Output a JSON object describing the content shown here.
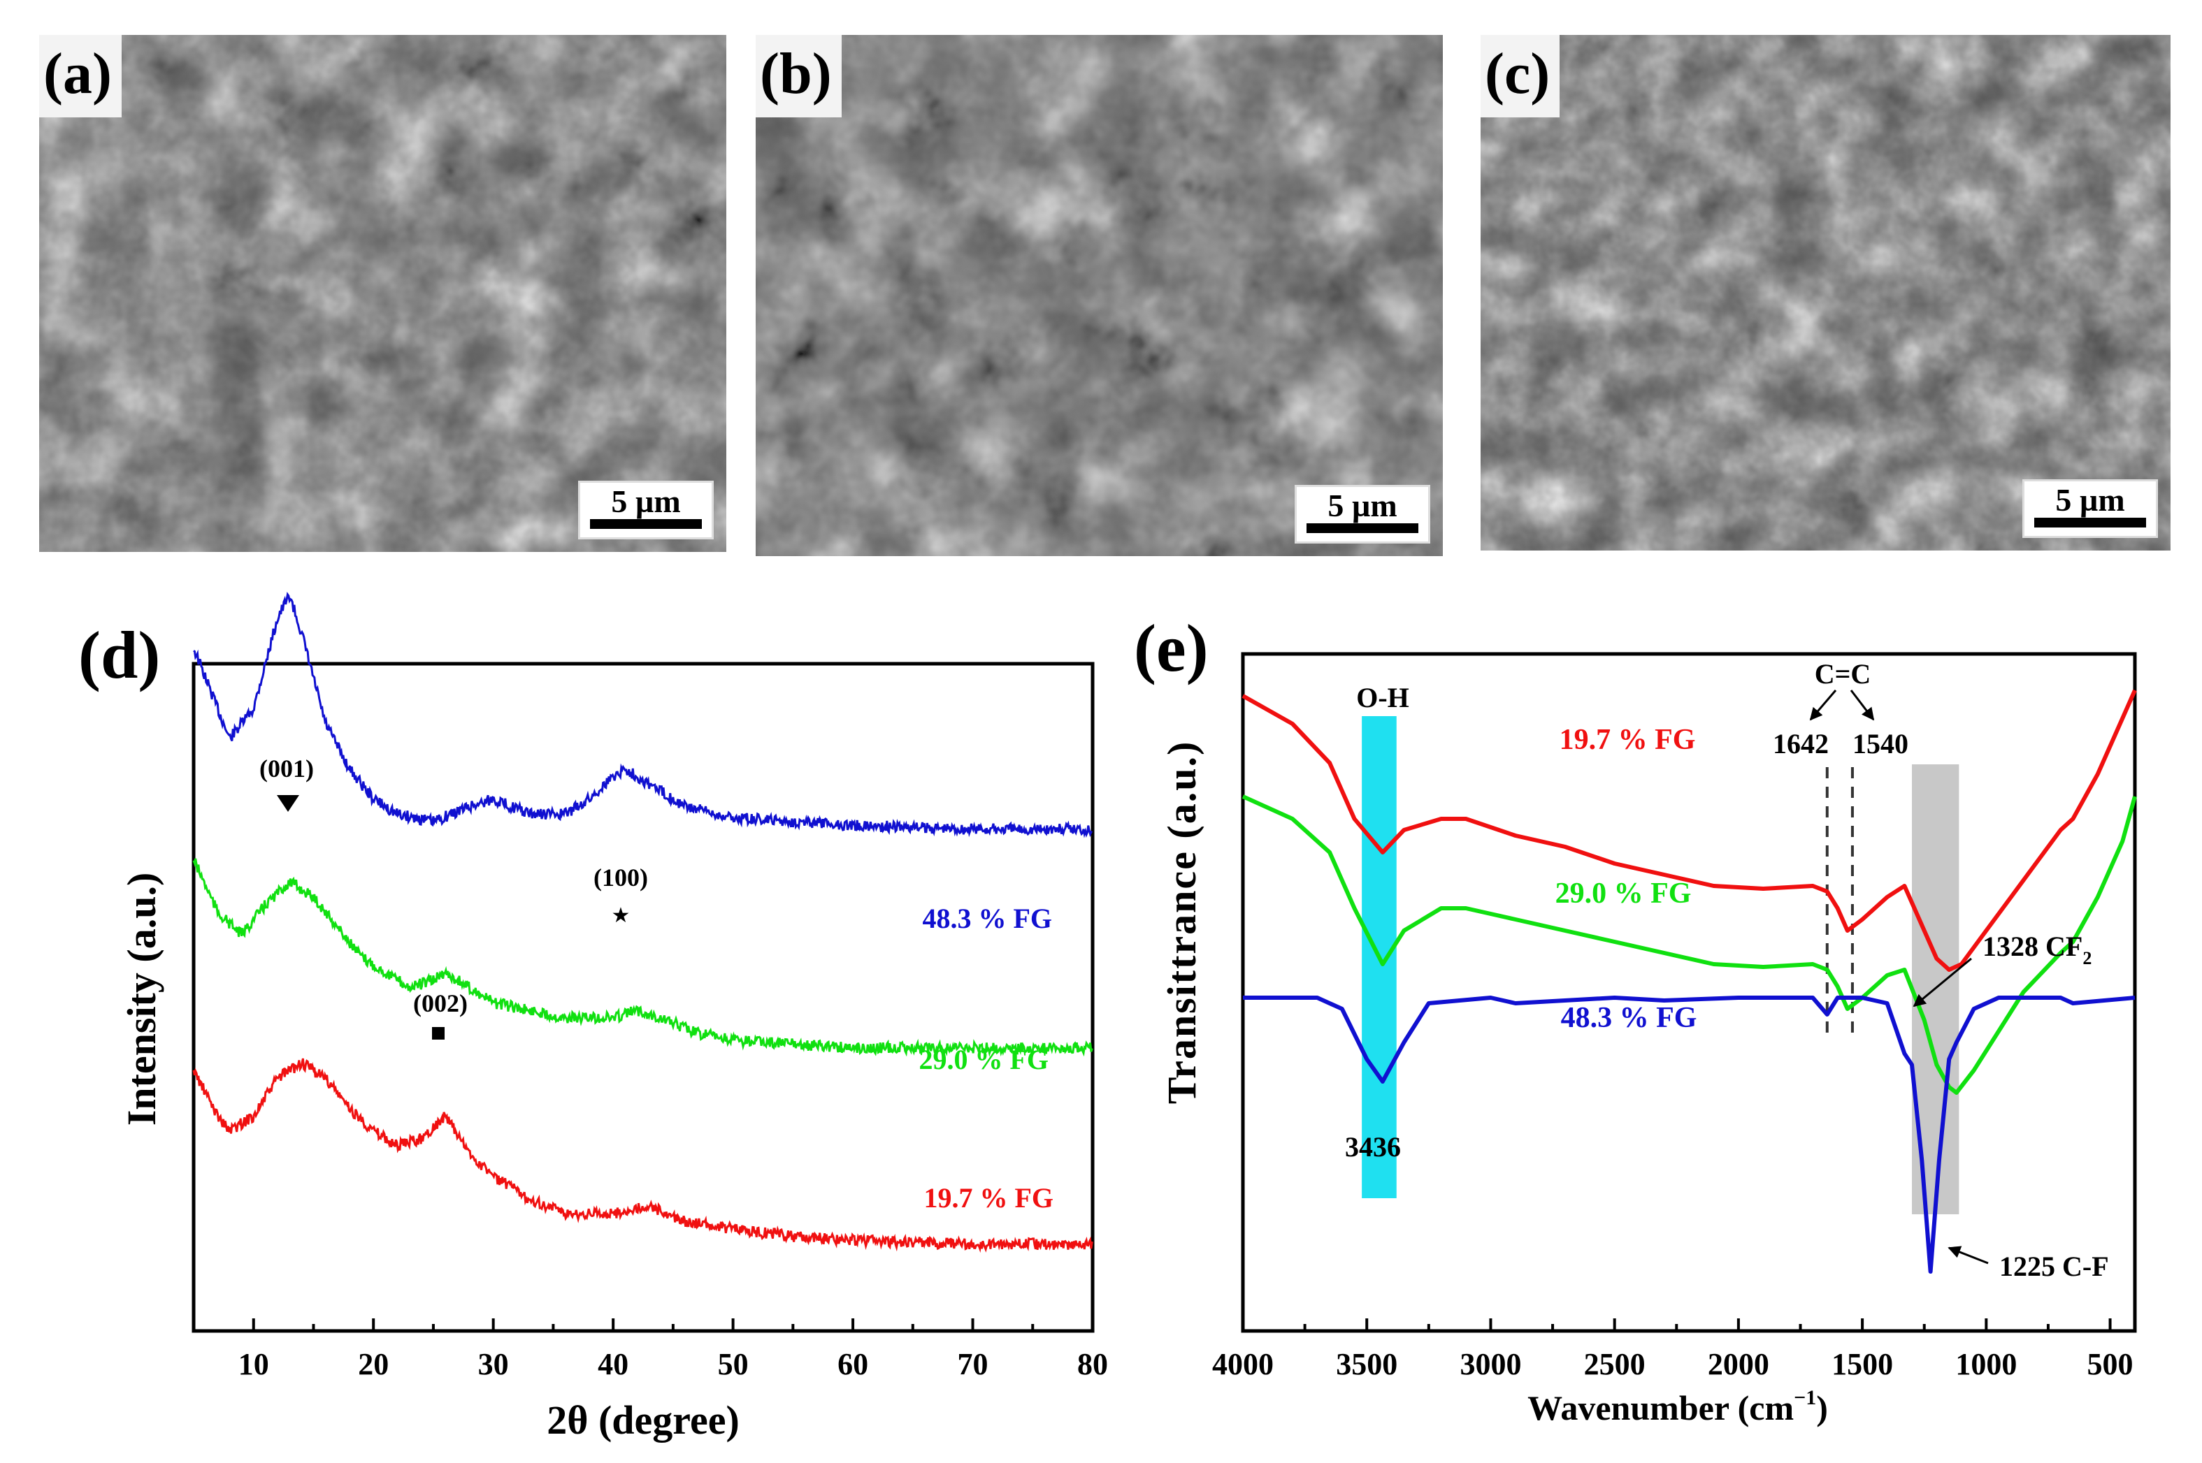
{
  "figure": {
    "panels": [
      {
        "id": "a",
        "label": "(a)",
        "scale_bar": "5 µm"
      },
      {
        "id": "b",
        "label": "(b)",
        "scale_bar": "5 µm"
      },
      {
        "id": "c",
        "label": "(c)",
        "scale_bar": "5 µm"
      },
      {
        "id": "d",
        "label": "(d)"
      },
      {
        "id": "e",
        "label": "(e)"
      }
    ]
  },
  "chart_data": [
    {
      "panel": "d",
      "type": "line",
      "title": "",
      "xlabel": "2θ (degree)",
      "ylabel": "Intensity (a.u.)",
      "xlim": [
        5,
        80
      ],
      "xticks": [
        10,
        20,
        30,
        40,
        50,
        60,
        70,
        80
      ],
      "yticks": [],
      "grid": false,
      "legend": "inline labels at right",
      "series": [
        {
          "name": "48.3 % FG",
          "color": "#1010d0",
          "x": [
            5,
            7,
            8,
            10,
            12,
            13,
            14,
            16,
            18,
            20,
            22,
            25,
            28,
            30,
            33,
            36,
            38,
            40,
            41,
            43,
            46,
            50,
            55,
            60,
            70,
            80
          ],
          "y": [
            0.78,
            0.7,
            0.66,
            0.7,
            0.82,
            0.85,
            0.8,
            0.68,
            0.62,
            0.58,
            0.56,
            0.55,
            0.57,
            0.58,
            0.56,
            0.56,
            0.58,
            0.61,
            0.62,
            0.6,
            0.57,
            0.555,
            0.55,
            0.545,
            0.54,
            0.54
          ]
        },
        {
          "name": "29.0 % FG",
          "color": "#10e010",
          "x": [
            5,
            7,
            9,
            11,
            13,
            15,
            17,
            19,
            21,
            23,
            25,
            26,
            28,
            30,
            33,
            36,
            40,
            42,
            44,
            47,
            50,
            55,
            60,
            70,
            80
          ],
          "y": [
            0.5,
            0.43,
            0.4,
            0.44,
            0.47,
            0.45,
            0.41,
            0.37,
            0.35,
            0.33,
            0.34,
            0.35,
            0.33,
            0.31,
            0.3,
            0.29,
            0.29,
            0.3,
            0.29,
            0.27,
            0.26,
            0.255,
            0.25,
            0.25,
            0.25
          ]
        },
        {
          "name": "19.7 % FG",
          "color": "#f01010",
          "x": [
            5,
            7,
            8,
            10,
            12,
            14,
            16,
            18,
            20,
            22,
            24,
            26,
            28,
            30,
            33,
            36,
            40,
            43,
            46,
            50,
            55,
            60,
            70,
            80
          ],
          "y": [
            0.22,
            0.16,
            0.14,
            0.16,
            0.21,
            0.23,
            0.21,
            0.17,
            0.14,
            0.12,
            0.13,
            0.16,
            0.11,
            0.08,
            0.05,
            0.03,
            0.03,
            0.04,
            0.02,
            0.01,
            0.0,
            -0.005,
            -0.01,
            -0.01
          ]
        }
      ],
      "annotations": [
        {
          "text": "(001)",
          "marker": "▼",
          "x": 13
        },
        {
          "text": "(100)",
          "marker": "★",
          "x": 41
        },
        {
          "text": "(002)",
          "marker": "■",
          "x": 25.5
        }
      ]
    },
    {
      "panel": "e",
      "type": "line",
      "title": "",
      "xlabel": "Wavenumber (cm⁻¹)",
      "ylabel": "Transittrance (a.u.)",
      "xlim": [
        4000,
        400
      ],
      "xticks": [
        4000,
        3500,
        3000,
        2500,
        2000,
        1500,
        1000,
        500
      ],
      "yticks": [],
      "grid": false,
      "legend": "inline labels",
      "series": [
        {
          "name": "19.7 % FG",
          "color": "#f01010",
          "x": [
            4000,
            3800,
            3650,
            3550,
            3436,
            3350,
            3200,
            3100,
            2900,
            2700,
            2500,
            2300,
            2100,
            1900,
            1700,
            1642,
            1600,
            1560,
            1500,
            1400,
            1330,
            1250,
            1200,
            1150,
            1100,
            1000,
            900,
            800,
            700,
            650,
            550,
            450,
            400
          ],
          "y": [
            0.98,
            0.93,
            0.86,
            0.76,
            0.7,
            0.74,
            0.76,
            0.76,
            0.73,
            0.71,
            0.68,
            0.66,
            0.64,
            0.635,
            0.64,
            0.63,
            0.6,
            0.56,
            0.58,
            0.62,
            0.64,
            0.56,
            0.51,
            0.49,
            0.5,
            0.56,
            0.62,
            0.68,
            0.74,
            0.76,
            0.84,
            0.94,
            0.99
          ]
        },
        {
          "name": "29.0 % FG",
          "color": "#10e010",
          "x": [
            4000,
            3800,
            3650,
            3550,
            3436,
            3350,
            3200,
            3100,
            2900,
            2700,
            2500,
            2300,
            2100,
            1900,
            1700,
            1642,
            1600,
            1560,
            1500,
            1400,
            1330,
            1250,
            1200,
            1150,
            1120,
            1050,
            950,
            850,
            700,
            650,
            550,
            450,
            400
          ],
          "y": [
            0.8,
            0.76,
            0.7,
            0.6,
            0.5,
            0.56,
            0.6,
            0.6,
            0.58,
            0.56,
            0.54,
            0.52,
            0.5,
            0.495,
            0.5,
            0.49,
            0.46,
            0.42,
            0.44,
            0.48,
            0.49,
            0.4,
            0.32,
            0.28,
            0.27,
            0.31,
            0.38,
            0.45,
            0.52,
            0.54,
            0.62,
            0.72,
            0.8
          ]
        },
        {
          "name": "48.3 % FG",
          "color": "#1010d0",
          "x": [
            4000,
            3700,
            3600,
            3500,
            3436,
            3350,
            3250,
            3000,
            2900,
            2500,
            2300,
            2000,
            1700,
            1642,
            1600,
            1500,
            1400,
            1330,
            1300,
            1260,
            1225,
            1190,
            1150,
            1120,
            1050,
            950,
            700,
            650,
            400
          ],
          "y": [
            0.44,
            0.44,
            0.42,
            0.33,
            0.29,
            0.36,
            0.43,
            0.44,
            0.43,
            0.44,
            0.435,
            0.44,
            0.44,
            0.41,
            0.44,
            0.44,
            0.43,
            0.34,
            0.32,
            0.15,
            -0.05,
            0.15,
            0.33,
            0.36,
            0.42,
            0.44,
            0.44,
            0.43,
            0.44
          ]
        }
      ],
      "annotations": [
        {
          "text": "O-H",
          "band": [
            3520,
            3380
          ],
          "band_color": "#1fe0f0",
          "label_below": "3436"
        },
        {
          "text": "C=C",
          "peaks": [
            "1642",
            "1540"
          ]
        },
        {
          "text": "1328 CF₂",
          "arrow": true
        },
        {
          "text": "1225 C-F",
          "arrow": true
        },
        {
          "band": [
            1300,
            1110
          ],
          "band_color": "#c8c8c8"
        }
      ]
    }
  ],
  "text": {
    "d_x_label": "2θ (degree)",
    "d_y_label": "Intensity (a.u.)",
    "e_x_label_main": "Wavenumber (cm",
    "e_x_label_sup": "−1",
    "e_x_label_end": ")",
    "e_y_label": "Transittrance (a.u.)",
    "d_series_labels": [
      "48.3 % FG",
      "29.0 % FG",
      "19.7 % FG"
    ],
    "e_series_labels": [
      "19.7 % FG",
      "29.0 % FG",
      "48.3 % FG"
    ],
    "d_annot_001": "(001)",
    "d_annot_100": "(100)",
    "d_annot_002": "(002)",
    "e_oh": "O-H",
    "e_oh_val": "3436",
    "e_cc": "C=C",
    "e_cc_1642": "1642",
    "e_cc_1540": "1540",
    "e_cf2_main": "1328 CF",
    "e_cf2_sub": "2",
    "e_cf": "1225 C-F"
  }
}
